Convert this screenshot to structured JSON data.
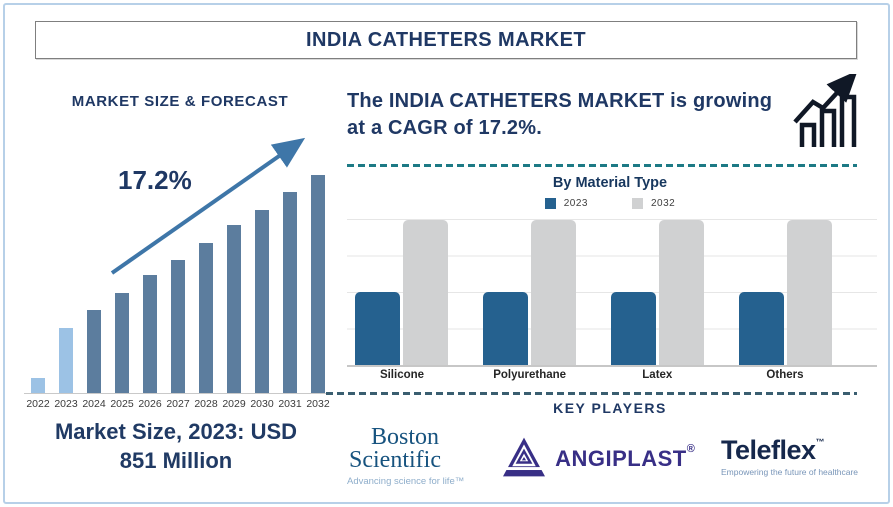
{
  "title": "INDIA CATHETERS MARKET",
  "left_panel": {
    "heading": "MARKET SIZE & FORECAST",
    "growth_label": "17.2%",
    "caption_line1": "Market Size, 2023: USD",
    "caption_line2": "851 Million"
  },
  "right_panel": {
    "headline_line1": "The INDIA CATHETERS MARKET is growing",
    "headline_line2": "at a CAGR of 17.2%.",
    "material_chart_title": "By Material Type",
    "legend": [
      {
        "label": "2023"
      },
      {
        "label": "2032"
      }
    ],
    "key_players_heading": "KEY PLAYERS"
  },
  "key_players": {
    "boston_scientific": {
      "name_line1": "Boston",
      "name_line2": "Scientific",
      "tagline": "Advancing science for life™"
    },
    "angiplast": {
      "name": "ANGIPLAST",
      "reg_mark": "®"
    },
    "teleflex": {
      "name": "Teleflex",
      "trademark": "™",
      "tagline": "Empowering the future of healthcare"
    }
  },
  "colors": {
    "navy_text": "#1f3864",
    "light_bar": "#9cc2e5",
    "dark_bar": "#5c7d9e",
    "trend_arrow": "#3e76a8",
    "blue_2023": "#25618f",
    "gray_2032": "#d0d1d2",
    "teal_dash": "#1d7a85",
    "navy_dash": "#3a5e70",
    "frame_border": "#b7d0e8"
  },
  "chart_data": [
    {
      "type": "bar",
      "title": "MARKET SIZE & FORECAST",
      "categories": [
        "2022",
        "2023",
        "2024",
        "2025",
        "2026",
        "2027",
        "2028",
        "2029",
        "2030",
        "2031",
        "2032"
      ],
      "values": [
        7,
        30,
        38,
        46,
        54,
        61,
        69,
        77,
        84,
        92,
        100
      ],
      "values_unit": "relative bar height, 2032 = 100 (no numeric axis shown)",
      "ylim": [
        0,
        100
      ],
      "xlabel": "",
      "ylabel": "",
      "grid": false,
      "legend_position": "none",
      "highlight_years": [
        "2022",
        "2023"
      ],
      "annotations": [
        "17.2% CAGR trend arrow",
        "Market Size, 2023: USD 851 Million"
      ]
    },
    {
      "type": "bar",
      "title": "By Material Type",
      "categories": [
        "Silicone",
        "Polyurethane",
        "Latex",
        "Others"
      ],
      "series": [
        {
          "name": "2023",
          "values": [
            50,
            50,
            50,
            50
          ]
        },
        {
          "name": "2032",
          "values": [
            100,
            100,
            100,
            100
          ]
        }
      ],
      "values_unit": "relative bar height, 2032 = 100 (no numeric axis shown)",
      "ylim": [
        0,
        100
      ],
      "grid": true,
      "legend_position": "top"
    }
  ]
}
